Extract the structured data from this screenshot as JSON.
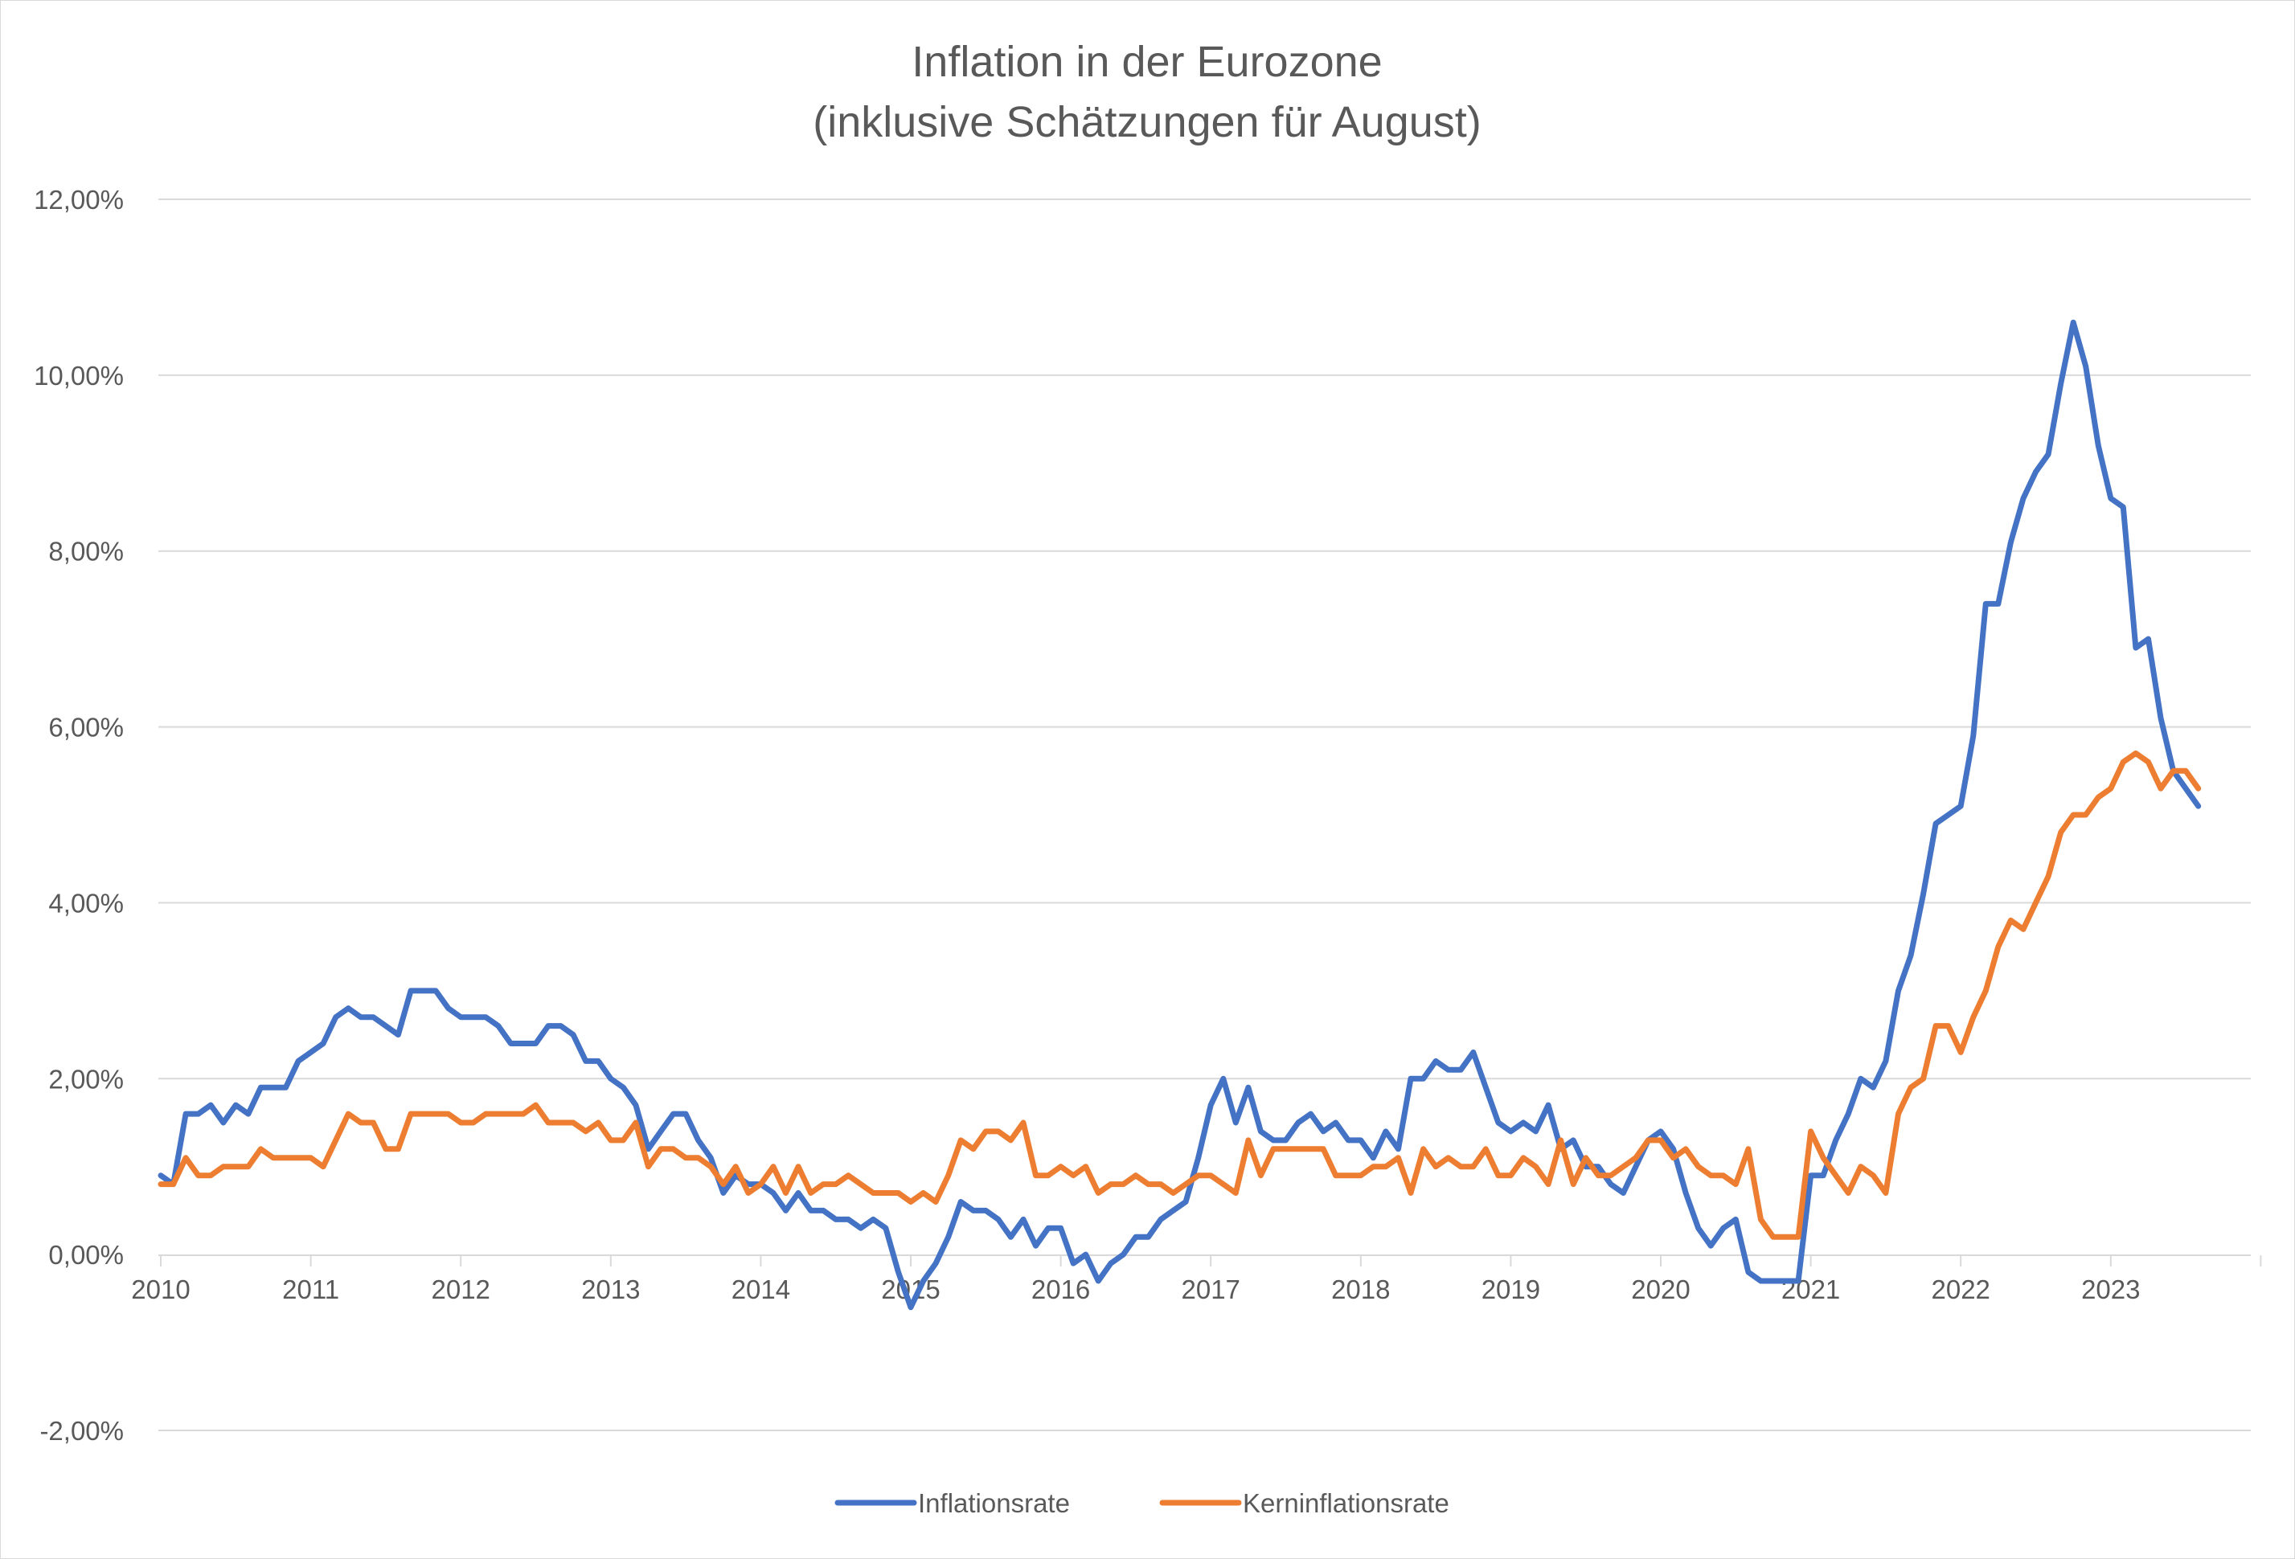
{
  "chart_data": {
    "type": "line",
    "title_lines": [
      "Inflation in der Eurozone",
      "(inklusive Schätzungen für August)"
    ],
    "ylim": [
      -0.02,
      0.12
    ],
    "y_ticks": [
      -0.02,
      0.0,
      0.02,
      0.04,
      0.06,
      0.08,
      0.1,
      0.12
    ],
    "y_tick_labels": [
      "-2,00%",
      "0,00%",
      "2,00%",
      "4,00%",
      "6,00%",
      "8,00%",
      "10,00%",
      "12,00%"
    ],
    "x_tick_labels": [
      "2010",
      "2011",
      "2012",
      "2013",
      "2014",
      "2015",
      "2016",
      "2017",
      "2018",
      "2019",
      "2020",
      "2021",
      "2022",
      "2023"
    ],
    "x_start": "2010-01",
    "x_end_axis": "2023-12",
    "grid": true,
    "legend_position": "bottom",
    "series": [
      {
        "name": "Inflationsrate",
        "color": "#4472c4",
        "values": [
          0.009,
          0.008,
          0.016,
          0.016,
          0.017,
          0.015,
          0.017,
          0.016,
          0.019,
          0.019,
          0.019,
          0.022,
          0.023,
          0.024,
          0.027,
          0.028,
          0.027,
          0.027,
          0.026,
          0.025,
          0.03,
          0.03,
          0.03,
          0.028,
          0.027,
          0.027,
          0.027,
          0.026,
          0.024,
          0.024,
          0.024,
          0.026,
          0.026,
          0.025,
          0.022,
          0.022,
          0.02,
          0.019,
          0.017,
          0.012,
          0.014,
          0.016,
          0.016,
          0.013,
          0.011,
          0.007,
          0.009,
          0.008,
          0.008,
          0.007,
          0.005,
          0.007,
          0.005,
          0.005,
          0.004,
          0.004,
          0.003,
          0.004,
          0.003,
          -0.002,
          -0.006,
          -0.003,
          -0.001,
          0.002,
          0.006,
          0.005,
          0.005,
          0.004,
          0.002,
          0.004,
          0.001,
          0.003,
          0.003,
          -0.001,
          0.0,
          -0.003,
          -0.001,
          0.0,
          0.002,
          0.002,
          0.004,
          0.005,
          0.006,
          0.011,
          0.017,
          0.02,
          0.015,
          0.019,
          0.014,
          0.013,
          0.013,
          0.015,
          0.016,
          0.014,
          0.015,
          0.013,
          0.013,
          0.011,
          0.014,
          0.012,
          0.02,
          0.02,
          0.022,
          0.021,
          0.021,
          0.023,
          0.019,
          0.015,
          0.014,
          0.015,
          0.014,
          0.017,
          0.012,
          0.013,
          0.01,
          0.01,
          0.008,
          0.007,
          0.01,
          0.013,
          0.014,
          0.012,
          0.007,
          0.003,
          0.001,
          0.003,
          0.004,
          -0.002,
          -0.003,
          -0.003,
          -0.003,
          -0.003,
          0.009,
          0.009,
          0.013,
          0.016,
          0.02,
          0.019,
          0.022,
          0.03,
          0.034,
          0.041,
          0.049,
          0.05,
          0.051,
          0.059,
          0.074,
          0.074,
          0.081,
          0.086,
          0.089,
          0.091,
          0.099,
          0.106,
          0.101,
          0.092,
          0.086,
          0.085,
          0.069,
          0.07,
          0.061,
          0.055,
          0.053,
          0.051
        ]
      },
      {
        "name": "Kerninflationsrate",
        "color": "#ed7d31",
        "values": [
          0.008,
          0.008,
          0.011,
          0.009,
          0.009,
          0.01,
          0.01,
          0.01,
          0.012,
          0.011,
          0.011,
          0.011,
          0.011,
          0.01,
          0.013,
          0.016,
          0.015,
          0.015,
          0.012,
          0.012,
          0.016,
          0.016,
          0.016,
          0.016,
          0.015,
          0.015,
          0.016,
          0.016,
          0.016,
          0.016,
          0.017,
          0.015,
          0.015,
          0.015,
          0.014,
          0.015,
          0.013,
          0.013,
          0.015,
          0.01,
          0.012,
          0.012,
          0.011,
          0.011,
          0.01,
          0.008,
          0.01,
          0.007,
          0.008,
          0.01,
          0.007,
          0.01,
          0.007,
          0.008,
          0.008,
          0.009,
          0.008,
          0.007,
          0.007,
          0.007,
          0.006,
          0.007,
          0.006,
          0.009,
          0.013,
          0.012,
          0.014,
          0.014,
          0.013,
          0.015,
          0.009,
          0.009,
          0.01,
          0.009,
          0.01,
          0.007,
          0.008,
          0.008,
          0.009,
          0.008,
          0.008,
          0.007,
          0.008,
          0.009,
          0.009,
          0.008,
          0.007,
          0.013,
          0.009,
          0.012,
          0.012,
          0.012,
          0.012,
          0.012,
          0.009,
          0.009,
          0.009,
          0.01,
          0.01,
          0.011,
          0.007,
          0.012,
          0.01,
          0.011,
          0.01,
          0.01,
          0.012,
          0.009,
          0.009,
          0.011,
          0.01,
          0.008,
          0.013,
          0.008,
          0.011,
          0.009,
          0.009,
          0.01,
          0.011,
          0.013,
          0.013,
          0.011,
          0.012,
          0.01,
          0.009,
          0.009,
          0.008,
          0.012,
          0.004,
          0.002,
          0.002,
          0.002,
          0.014,
          0.011,
          0.009,
          0.007,
          0.01,
          0.009,
          0.007,
          0.016,
          0.019,
          0.02,
          0.026,
          0.026,
          0.023,
          0.027,
          0.03,
          0.035,
          0.038,
          0.037,
          0.04,
          0.043,
          0.048,
          0.05,
          0.05,
          0.052,
          0.053,
          0.056,
          0.057,
          0.056,
          0.053,
          0.055,
          0.055,
          0.053
        ]
      }
    ]
  }
}
